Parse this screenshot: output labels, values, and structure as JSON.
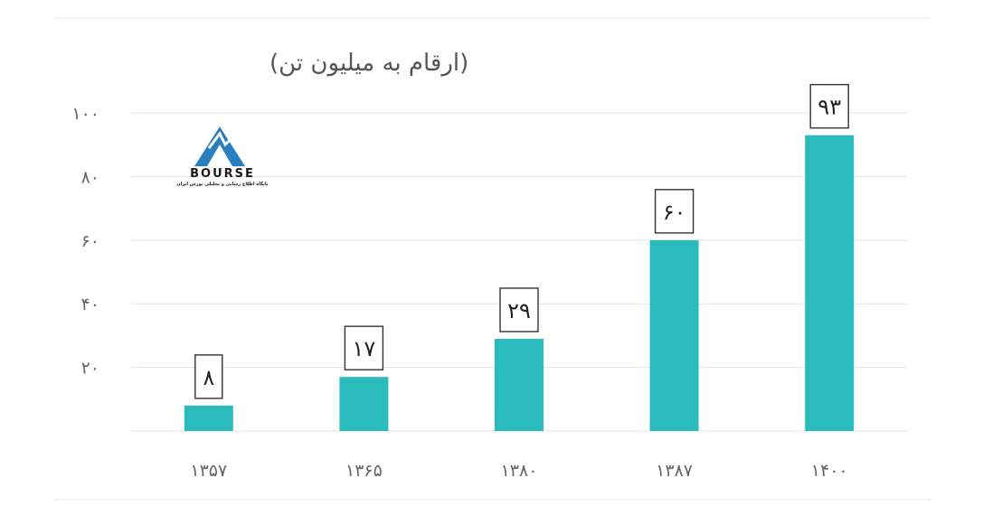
{
  "chart_data": {
    "type": "bar",
    "title": "(ارقام به میلیون تن)",
    "categories": [
      "۱۳۵۷",
      "۱۳۶۵",
      "۱۳۸۰",
      "۱۳۸۷",
      "۱۴۰۰"
    ],
    "values": [
      8,
      17,
      29,
      60,
      93
    ],
    "value_labels": [
      "۸",
      "۱۷",
      "۲۹",
      "۶۰",
      "۹۳"
    ],
    "yticks": [
      20,
      40,
      60,
      80,
      100
    ],
    "ytick_labels": [
      "۲۰",
      "۴۰",
      "۶۰",
      "۸۰",
      "۱۰۰"
    ],
    "ylim": [
      0,
      100
    ],
    "grid": true,
    "bar_color": "#2bbbbd",
    "grid_color": "#e3e3e3"
  },
  "logo": {
    "name": "BOURSE",
    "tagline": "پایگاه اطلاع رسانی و تحلیلی بورس ایران",
    "color": "#2a7fc0"
  }
}
